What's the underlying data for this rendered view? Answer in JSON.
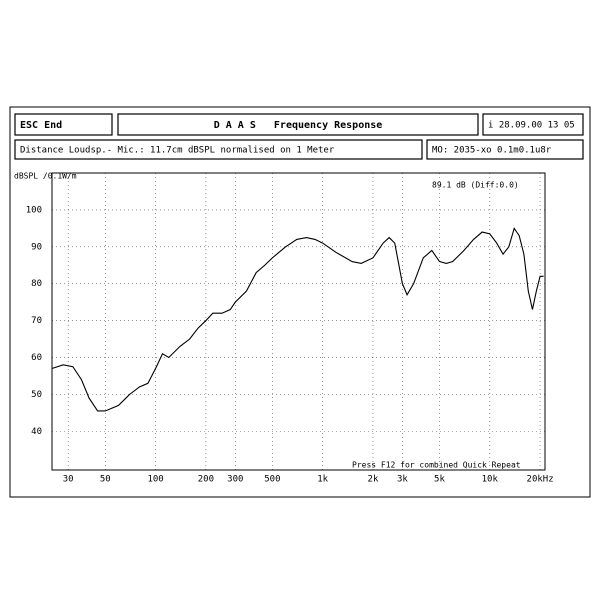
{
  "header": {
    "escape": "ESC End",
    "title": "D A A S   Frequency Response",
    "info": "i 28.09.00 13 05",
    "description": "Distance Loudsp.- Mic.: 11.7cm dBSPL normalised on 1 Meter",
    "memory": "MO: 2035-xo 0.1m0.1u8r"
  },
  "chart_data": {
    "type": "line",
    "y_label": "dBSPL /0.1W/m",
    "annotations": [
      "89.1 dB (Diff:0.0)",
      "Press F12 for combined Quick Repeat"
    ],
    "log_x": true,
    "grid": true,
    "color": "#000000",
    "xlim": [
      24,
      21400
    ],
    "ylim": [
      29.5,
      110
    ],
    "xticks": [
      30,
      50,
      100,
      200,
      300,
      500,
      {
        "value": 1000,
        "label": "1k"
      },
      {
        "value": 2000,
        "label": "2k"
      },
      {
        "value": 3000,
        "label": "3k"
      },
      {
        "value": 5000,
        "label": "5k"
      },
      {
        "value": 10000,
        "label": "10k"
      },
      {
        "value": 20000,
        "label": "20kHz"
      }
    ],
    "yticks": [
      40,
      50,
      60,
      70,
      80,
      90,
      100
    ],
    "x": [
      24,
      28,
      32,
      36,
      40,
      45,
      50,
      60,
      70,
      80,
      90,
      100,
      110,
      120,
      140,
      160,
      180,
      200,
      220,
      250,
      280,
      300,
      350,
      400,
      450,
      500,
      600,
      700,
      800,
      900,
      1000,
      1200,
      1500,
      1700,
      2000,
      2300,
      2500,
      2700,
      3000,
      3200,
      3500,
      4000,
      4500,
      5000,
      5500,
      6000,
      7000,
      8000,
      9000,
      10000,
      11000,
      12000,
      13000,
      14000,
      15000,
      16000,
      17000,
      18000,
      19000,
      20000,
      21000
    ],
    "values": [
      57,
      58,
      57.5,
      54,
      49,
      45.5,
      45.5,
      47,
      50,
      52,
      53,
      57,
      61,
      60,
      63,
      65,
      68,
      70,
      72,
      72,
      73,
      75,
      78,
      83,
      85,
      87,
      90,
      92,
      92.5,
      92,
      91,
      88.5,
      86,
      85.5,
      87,
      91,
      92.5,
      91,
      80,
      77,
      80,
      87,
      89,
      86,
      85.5,
      86,
      89,
      92,
      94,
      93.5,
      91,
      88,
      90,
      95,
      93,
      88,
      78,
      73,
      78,
      82,
      82
    ]
  }
}
